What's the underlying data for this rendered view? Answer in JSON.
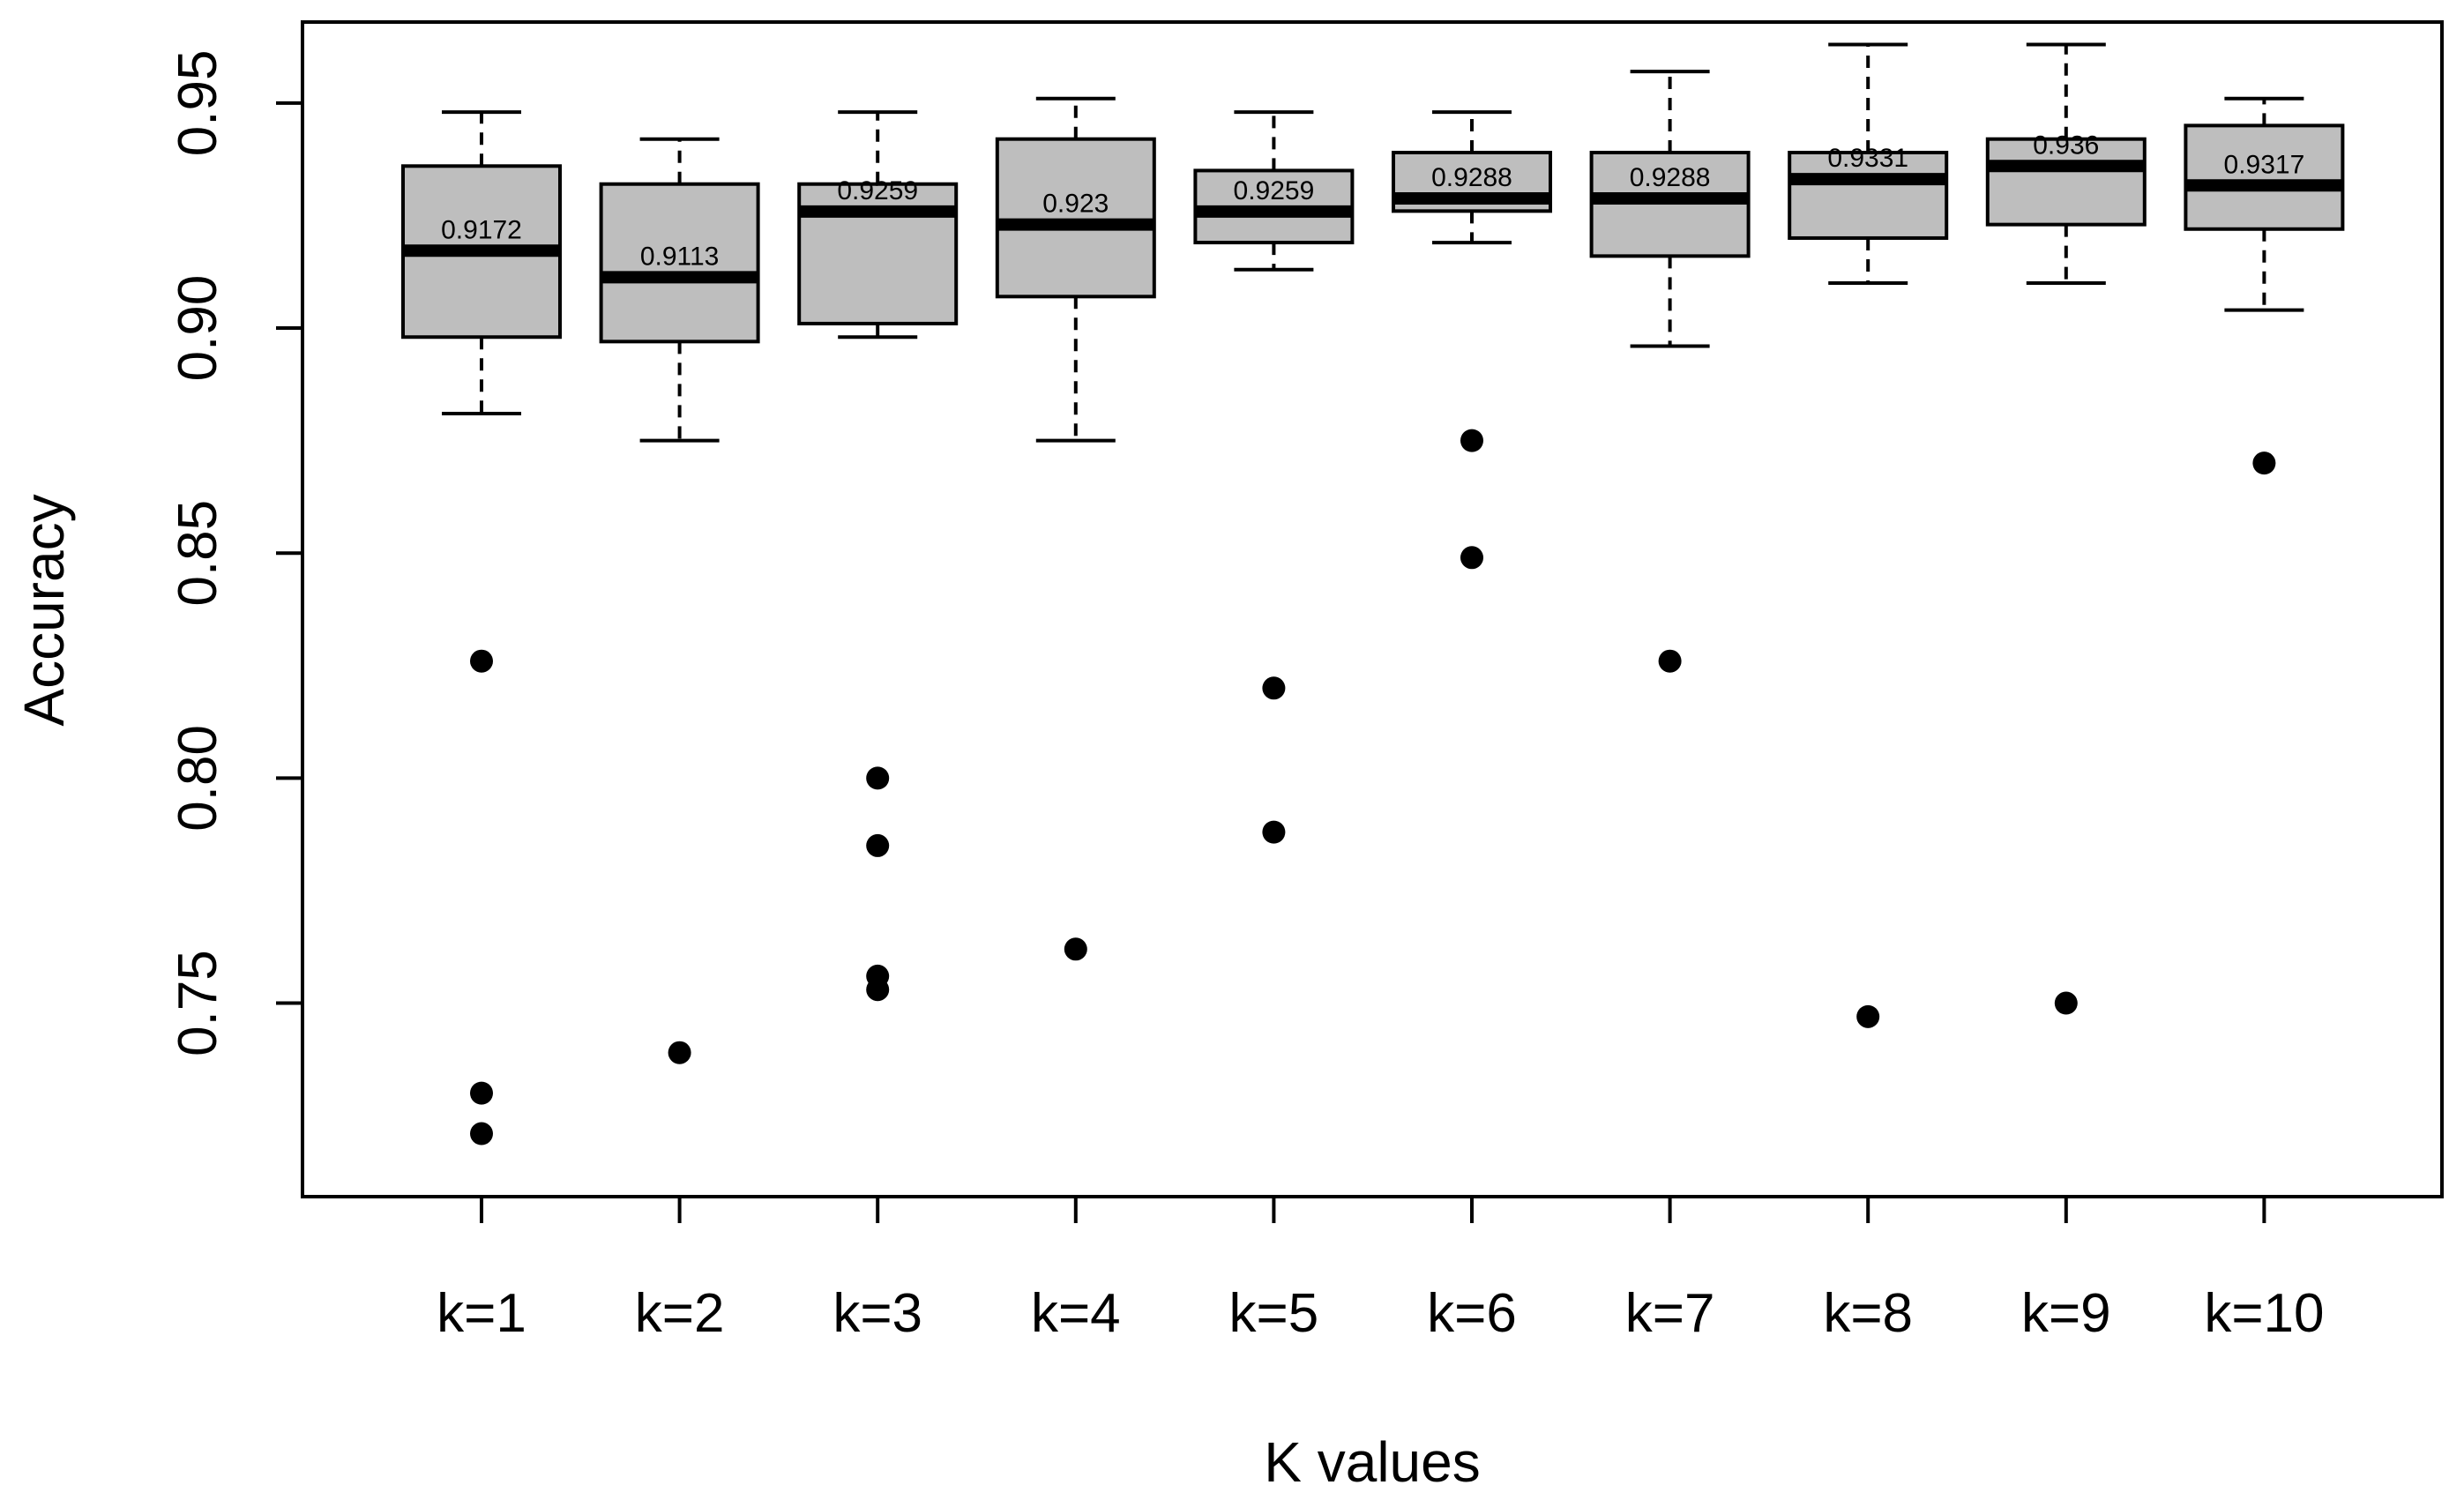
{
  "colors": {
    "box_fill": "#bebebe",
    "stroke": "#000000",
    "background": "#ffffff"
  },
  "chart_data": {
    "type": "boxplot",
    "title": "",
    "xlabel": "K values",
    "ylabel": "Accuracy",
    "ylim": [
      0.707,
      0.968
    ],
    "yticks": [
      0.75,
      0.8,
      0.85,
      0.9,
      0.95
    ],
    "ytick_labels": [
      "0.75",
      "0.80",
      "0.85",
      "0.90",
      "0.95"
    ],
    "grid": false,
    "categories": [
      "k=1",
      "k=2",
      "k=3",
      "k=4",
      "k=5",
      "k=6",
      "k=7",
      "k=8",
      "k=9",
      "k=10"
    ],
    "boxes": [
      {
        "category": "k=1",
        "whisker_low": 0.881,
        "q1": 0.898,
        "median": 0.9172,
        "q3": 0.936,
        "whisker_high": 0.948,
        "median_label": "0.9172",
        "outliers": [
          0.826,
          0.73,
          0.721
        ]
      },
      {
        "category": "k=2",
        "whisker_low": 0.875,
        "q1": 0.897,
        "median": 0.9113,
        "q3": 0.932,
        "whisker_high": 0.942,
        "median_label": "0.9113",
        "outliers": [
          0.739
        ]
      },
      {
        "category": "k=3",
        "whisker_low": 0.898,
        "q1": 0.901,
        "median": 0.9259,
        "q3": 0.932,
        "whisker_high": 0.948,
        "median_label": "0.9259",
        "outliers": [
          0.8,
          0.785,
          0.756,
          0.753
        ]
      },
      {
        "category": "k=4",
        "whisker_low": 0.875,
        "q1": 0.907,
        "median": 0.923,
        "q3": 0.942,
        "whisker_high": 0.951,
        "median_label": "0.923",
        "outliers": [
          0.762
        ]
      },
      {
        "category": "k=5",
        "whisker_low": 0.913,
        "q1": 0.919,
        "median": 0.9259,
        "q3": 0.935,
        "whisker_high": 0.948,
        "median_label": "0.9259",
        "outliers": [
          0.82,
          0.788
        ]
      },
      {
        "category": "k=6",
        "whisker_low": 0.919,
        "q1": 0.926,
        "median": 0.9288,
        "q3": 0.939,
        "whisker_high": 0.948,
        "median_label": "0.9288",
        "outliers": [
          0.875,
          0.849
        ]
      },
      {
        "category": "k=7",
        "whisker_low": 0.896,
        "q1": 0.916,
        "median": 0.9288,
        "q3": 0.939,
        "whisker_high": 0.957,
        "median_label": "0.9288",
        "outliers": [
          0.826
        ]
      },
      {
        "category": "k=8",
        "whisker_low": 0.91,
        "q1": 0.92,
        "median": 0.9331,
        "q3": 0.939,
        "whisker_high": 0.963,
        "median_label": "0.9331",
        "outliers": [
          0.747
        ]
      },
      {
        "category": "k=9",
        "whisker_low": 0.91,
        "q1": 0.923,
        "median": 0.936,
        "q3": 0.942,
        "whisker_high": 0.963,
        "median_label": "0.936",
        "outliers": [
          0.75
        ]
      },
      {
        "category": "k=10",
        "whisker_low": 0.904,
        "q1": 0.922,
        "median": 0.9317,
        "q3": 0.945,
        "whisker_high": 0.951,
        "median_label": "0.9317",
        "outliers": [
          0.87
        ]
      }
    ]
  }
}
